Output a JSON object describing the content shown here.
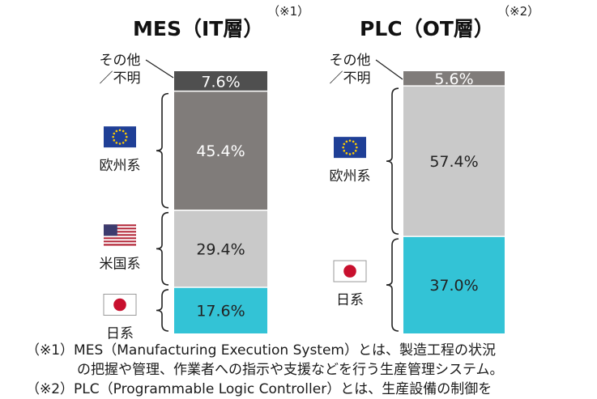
{
  "chart_data": [
    {
      "type": "bar",
      "stacked": true,
      "title": "MES（IT層）",
      "note_mark": "（※1）",
      "segments": [
        {
          "name": "日系",
          "value": 17.6,
          "label": "17.6%",
          "color": "#33c3d6",
          "label_color": "#222222",
          "flag": "japan-flag"
        },
        {
          "name": "米国系",
          "value": 29.4,
          "label": "29.4%",
          "color": "#c9c9c9",
          "label_color": "#222222",
          "flag": "usa-flag"
        },
        {
          "name": "欧州系",
          "value": 45.4,
          "label": "45.4%",
          "color": "#807c7a",
          "label_color": "#ffffff",
          "flag": "eu-flag"
        },
        {
          "name": "その他\n／不明",
          "value": 7.6,
          "label": "7.6%",
          "color": "#4f4f4f",
          "label_color": "#ffffff",
          "flag": ""
        }
      ]
    },
    {
      "type": "bar",
      "stacked": true,
      "title": "PLC（OT層）",
      "note_mark": "（※2）",
      "segments": [
        {
          "name": "日系",
          "value": 37.0,
          "label": "37.0%",
          "color": "#33c3d6",
          "label_color": "#222222",
          "flag": "japan-flag"
        },
        {
          "name": "欧州系",
          "value": 57.4,
          "label": "57.4%",
          "color": "#c9c9c9",
          "label_color": "#222222",
          "flag": "eu-flag"
        },
        {
          "name": "その他\n／不明",
          "value": 5.6,
          "label": "5.6%",
          "color": "#807c7a",
          "label_color": "#ffffff",
          "flag": ""
        }
      ]
    }
  ],
  "footnotes": {
    "note1_line1": "（※1）MES（Manufacturing Execution System）とは、製造工程の状況",
    "note1_line2": "の把握や管理、作業者への指示や支援などを行う生産管理システム。",
    "note2_line1": "（※2）PLC（Programmable Logic Controller）とは、生産設備の制御を"
  },
  "colors": {
    "bracket": "#222222",
    "japan_red": "#c8102e",
    "eu_blue": "#1f3f96",
    "eu_star": "#ffcc00",
    "usa_red": "#b22234",
    "usa_blue": "#3c3b6e"
  }
}
